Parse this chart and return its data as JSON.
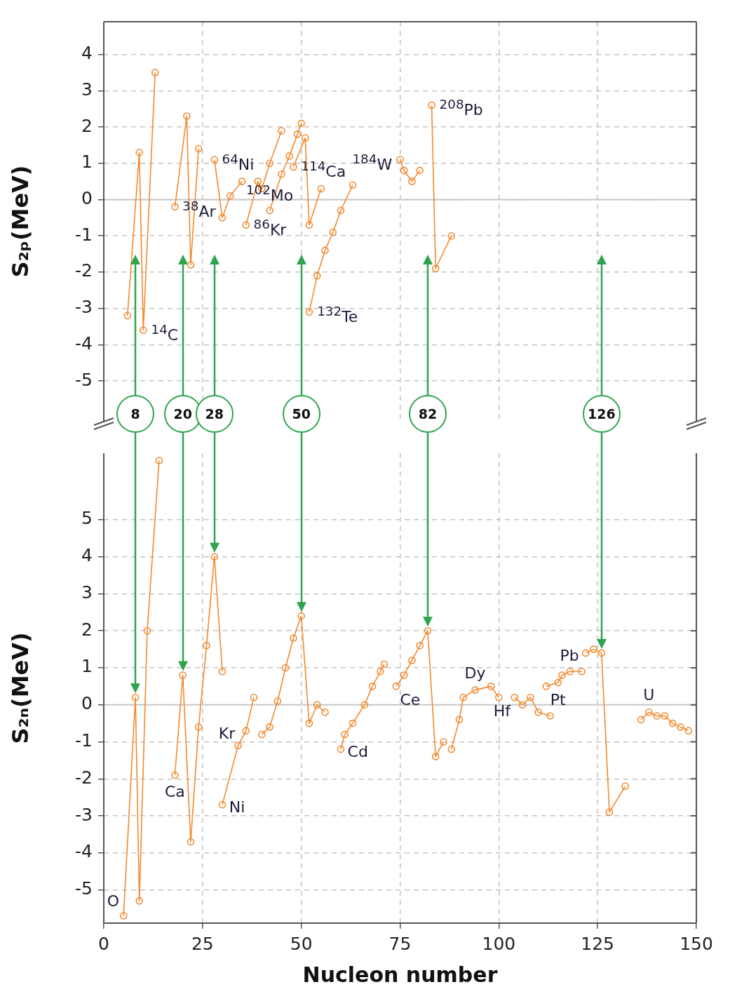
{
  "chart_data": [
    {
      "type": "line",
      "ylabel": "S₂ₚ(MeV)",
      "xlim": [
        0,
        150
      ],
      "xticks": [
        0,
        25,
        50,
        75,
        100,
        125,
        150
      ],
      "ylim": [
        -6.1,
        4.9
      ],
      "yticks": [
        -5,
        -4,
        -3,
        -2,
        -1,
        0,
        1,
        2,
        3,
        4
      ],
      "tick_labels": "y",
      "grid": true,
      "legend": false,
      "marker": "circle",
      "line_style": "solid",
      "ref_lines": [
        {
          "axis": "y",
          "value": 0,
          "color": "#c8c8c8"
        }
      ],
      "series": [
        {
          "color": "#f28a30",
          "x": [
            6,
            9,
            10,
            13
          ],
          "values": [
            -3.2,
            1.3,
            -3.6,
            3.5
          ]
        },
        {
          "color": "#f28a30",
          "x": [
            18,
            21,
            22,
            24
          ],
          "values": [
            -0.2,
            2.3,
            -1.8,
            1.4
          ]
        },
        {
          "color": "#f28a30",
          "x": [
            28,
            30,
            32,
            35
          ],
          "values": [
            1.1,
            -0.5,
            0.1,
            0.5
          ]
        },
        {
          "color": "#f28a30",
          "x": [
            36,
            39,
            40,
            42,
            45
          ],
          "values": [
            -0.7,
            0.5,
            0.3,
            1.0,
            1.9
          ]
        },
        {
          "color": "#f28a30",
          "x": [
            42,
            45,
            47,
            49,
            50
          ],
          "values": [
            -0.3,
            0.7,
            1.2,
            1.8,
            2.1
          ]
        },
        {
          "color": "#f28a30",
          "x": [
            48,
            51,
            52,
            55
          ],
          "values": [
            0.9,
            1.7,
            -0.7,
            0.3
          ]
        },
        {
          "color": "#f28a30",
          "x": [
            52,
            54,
            56,
            58,
            60,
            63
          ],
          "values": [
            -3.1,
            -2.1,
            -1.4,
            -0.9,
            -0.3,
            0.4
          ]
        },
        {
          "color": "#f28a30",
          "x": [
            75,
            76,
            78,
            80
          ],
          "values": [
            1.1,
            0.8,
            0.5,
            0.8
          ]
        },
        {
          "color": "#f28a30",
          "x": [
            83,
            84,
            88
          ],
          "values": [
            2.6,
            -1.9,
            -1.0
          ]
        }
      ],
      "annotations": [
        {
          "text": "$^{14}$C",
          "x": 10,
          "y": -3.6
        },
        {
          "text": "$^{38}$Ar",
          "x": 18,
          "y": -0.2
        },
        {
          "text": "$^{64}$Ni",
          "x": 28,
          "y": 1.1
        },
        {
          "text": "$^{86}$Kr",
          "x": 36,
          "y": -0.7
        },
        {
          "text": "$^{102}$Mo",
          "x": 42,
          "y": -0.3
        },
        {
          "text": "$^{114}$Ca",
          "x": 48,
          "y": 0.9
        },
        {
          "text": "$^{132}$Te",
          "x": 52,
          "y": -3.1
        },
        {
          "text": "$^{184}$W",
          "x": 75,
          "y": 1.1
        },
        {
          "text": "$^{208}$Pb",
          "x": 83,
          "y": 2.6
        }
      ]
    },
    {
      "type": "line",
      "ylabel": "S₂ₙ(MeV)",
      "xlabel": "Nucleon number",
      "xlim": [
        0,
        150
      ],
      "xticks": [
        0,
        25,
        50,
        75,
        100,
        125,
        150
      ],
      "ylim": [
        -5.9,
        6.8
      ],
      "yticks": [
        -5,
        -4,
        -3,
        -2,
        -1,
        0,
        1,
        2,
        3,
        4,
        5
      ],
      "grid": true,
      "legend": false,
      "marker": "circle",
      "line_style": "solid",
      "ref_lines": [
        {
          "axis": "y",
          "value": 0,
          "color": "#c8c8c8"
        }
      ],
      "series": [
        {
          "color": "#f28a30",
          "x": [
            5,
            8,
            9,
            11,
            14
          ],
          "values": [
            -5.7,
            0.2,
            -5.3,
            2.0,
            6.6
          ]
        },
        {
          "color": "#f28a30",
          "x": [
            18,
            20,
            22,
            24,
            26,
            28,
            30
          ],
          "values": [
            -1.9,
            0.8,
            -3.7,
            -0.6,
            1.6,
            4.0,
            0.9
          ]
        },
        {
          "color": "#f28a30",
          "x": [
            30,
            34,
            36,
            38
          ],
          "values": [
            -2.7,
            -1.1,
            -0.7,
            0.2
          ]
        },
        {
          "color": "#f28a30",
          "x": [
            40,
            42,
            44,
            46,
            48,
            50,
            52,
            54,
            56
          ],
          "values": [
            -0.8,
            -0.6,
            0.1,
            1.0,
            1.8,
            2.4,
            -0.5,
            0.0,
            -0.2
          ]
        },
        {
          "color": "#f28a30",
          "x": [
            60,
            61,
            63,
            66,
            68,
            70,
            71
          ],
          "values": [
            -1.2,
            -0.8,
            -0.5,
            0.0,
            0.5,
            0.9,
            1.1
          ]
        },
        {
          "color": "#f28a30",
          "x": [
            74,
            76,
            78,
            80,
            82,
            84,
            86
          ],
          "values": [
            0.5,
            0.8,
            1.2,
            1.6,
            2.0,
            -1.4,
            -1.0
          ]
        },
        {
          "color": "#f28a30",
          "x": [
            88,
            90,
            91,
            94,
            98,
            100
          ],
          "values": [
            -1.2,
            -0.4,
            0.2,
            0.4,
            0.5,
            0.2
          ]
        },
        {
          "color": "#f28a30",
          "x": [
            104,
            106,
            108,
            110,
            113
          ],
          "values": [
            0.2,
            0.0,
            0.2,
            -0.2,
            -0.3
          ]
        },
        {
          "color": "#f28a30",
          "x": [
            112,
            115,
            116,
            118,
            121
          ],
          "values": [
            0.5,
            0.6,
            0.8,
            0.9,
            0.9
          ]
        },
        {
          "color": "#f28a30",
          "x": [
            122,
            124,
            126,
            128,
            132
          ],
          "values": [
            1.4,
            1.5,
            1.4,
            -2.9,
            -2.2
          ]
        },
        {
          "color": "#f28a30",
          "x": [
            136,
            138,
            140,
            142,
            144,
            146,
            148
          ],
          "values": [
            -0.4,
            -0.2,
            -0.3,
            -0.3,
            -0.5,
            -0.6,
            -0.7
          ]
        }
      ],
      "annotations": [
        {
          "text": "O",
          "x": 5,
          "y": -5.7
        },
        {
          "text": "Ca",
          "x": 18,
          "y": -1.9
        },
        {
          "text": "Ni",
          "x": 30,
          "y": -2.7
        },
        {
          "text": "Kr",
          "x": 35,
          "y": -0.7
        },
        {
          "text": "Cd",
          "x": 60,
          "y": -1.2
        },
        {
          "text": "Ce",
          "x": 74,
          "y": 0.5
        },
        {
          "text": "Dy",
          "x": 94,
          "y": 0.4
        },
        {
          "text": "Hf",
          "x": 104,
          "y": 0.2
        },
        {
          "text": "Pt",
          "x": 112,
          "y": 0.5
        },
        {
          "text": "Pb",
          "x": 122,
          "y": 1.4
        },
        {
          "text": "U",
          "x": 138,
          "y": -0.2
        },
        {
          "text": "8",
          "x": 8
        },
        {
          "text": "20",
          "x": 20
        },
        {
          "text": "28",
          "x": 28
        },
        {
          "text": "50",
          "x": 50
        },
        {
          "text": "82",
          "x": 82
        },
        {
          "text": "126",
          "x": 126
        }
      ]
    }
  ]
}
